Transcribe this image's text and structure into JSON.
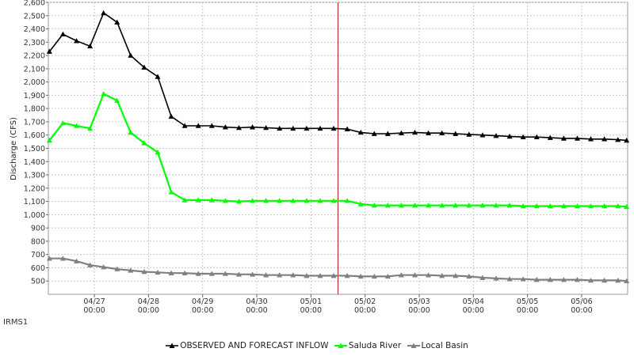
{
  "watermark": "IRMS1",
  "chart_data": {
    "type": "line",
    "title": "",
    "xlabel": "",
    "ylabel": "Discharge (CFS)",
    "ylim": [
      400,
      2600
    ],
    "y_ticks": [
      500,
      600,
      700,
      800,
      900,
      1000,
      1100,
      1200,
      1300,
      1400,
      1500,
      1600,
      1700,
      1800,
      1900,
      2000,
      2100,
      2200,
      2300,
      2400,
      2500,
      2600
    ],
    "y_tick_labels": [
      "500",
      "600",
      "700",
      "800",
      "900",
      "1,000",
      "1,100",
      "1,200",
      "1,300",
      "1,400",
      "1,500",
      "1,600",
      "1,700",
      "1,800",
      "1,900",
      "2,000",
      "2,100",
      "2,200",
      "2,300",
      "2,400",
      "2,500",
      "2,600"
    ],
    "x_unit": "days from 04/26 00:00",
    "xlim": [
      0.15,
      10.85
    ],
    "x_ticks": [
      {
        "x": 1,
        "date": "04/27",
        "time": "00:00"
      },
      {
        "x": 2,
        "date": "04/28",
        "time": "00:00"
      },
      {
        "x": 3,
        "date": "04/29",
        "time": "00:00"
      },
      {
        "x": 4,
        "date": "04/30",
        "time": "00:00"
      },
      {
        "x": 5,
        "date": "05/01",
        "time": "00:00"
      },
      {
        "x": 6,
        "date": "05/02",
        "time": "00:00"
      },
      {
        "x": 7,
        "date": "05/03",
        "time": "00:00"
      },
      {
        "x": 8,
        "date": "05/04",
        "time": "00:00"
      },
      {
        "x": 9,
        "date": "05/05",
        "time": "00:00"
      },
      {
        "x": 10,
        "date": "05/06",
        "time": "00:00"
      }
    ],
    "grid": true,
    "legend_position": "bottom",
    "forecast_line_x": 5.5,
    "x": [
      0.17,
      0.42,
      0.67,
      0.92,
      1.17,
      1.42,
      1.67,
      1.92,
      2.17,
      2.42,
      2.67,
      2.92,
      3.17,
      3.42,
      3.67,
      3.92,
      4.17,
      4.42,
      4.67,
      4.92,
      5.17,
      5.42,
      5.67,
      5.92,
      6.17,
      6.42,
      6.67,
      6.92,
      7.17,
      7.42,
      7.67,
      7.92,
      8.17,
      8.42,
      8.67,
      8.92,
      9.17,
      9.42,
      9.67,
      9.92,
      10.17,
      10.42,
      10.67,
      10.83
    ],
    "series": [
      {
        "name": "OBSERVED AND FORECAST INFLOW",
        "color": "#000000",
        "values": [
          2230,
          2360,
          2310,
          2270,
          2520,
          2450,
          2200,
          2110,
          2040,
          1740,
          1670,
          1670,
          1670,
          1660,
          1655,
          1660,
          1655,
          1650,
          1650,
          1650,
          1650,
          1650,
          1645,
          1620,
          1610,
          1610,
          1615,
          1620,
          1615,
          1615,
          1610,
          1605,
          1600,
          1595,
          1590,
          1585,
          1585,
          1580,
          1575,
          1575,
          1570,
          1570,
          1565,
          1560
        ]
      },
      {
        "name": "Saluda River",
        "color": "#00ff00",
        "values": [
          1560,
          1690,
          1670,
          1650,
          1910,
          1860,
          1620,
          1540,
          1470,
          1170,
          1110,
          1110,
          1110,
          1105,
          1100,
          1105,
          1105,
          1105,
          1105,
          1105,
          1105,
          1105,
          1105,
          1080,
          1070,
          1070,
          1070,
          1070,
          1070,
          1070,
          1070,
          1070,
          1070,
          1070,
          1070,
          1065,
          1065,
          1065,
          1065,
          1065,
          1065,
          1065,
          1065,
          1060
        ]
      },
      {
        "name": "Local Basin",
        "color": "#808080",
        "values": [
          670,
          670,
          650,
          620,
          605,
          590,
          580,
          570,
          565,
          560,
          560,
          555,
          555,
          555,
          550,
          550,
          545,
          545,
          545,
          540,
          540,
          540,
          540,
          535,
          535,
          535,
          545,
          545,
          545,
          540,
          540,
          535,
          525,
          520,
          515,
          515,
          510,
          510,
          510,
          510,
          505,
          505,
          505,
          500
        ]
      }
    ]
  }
}
